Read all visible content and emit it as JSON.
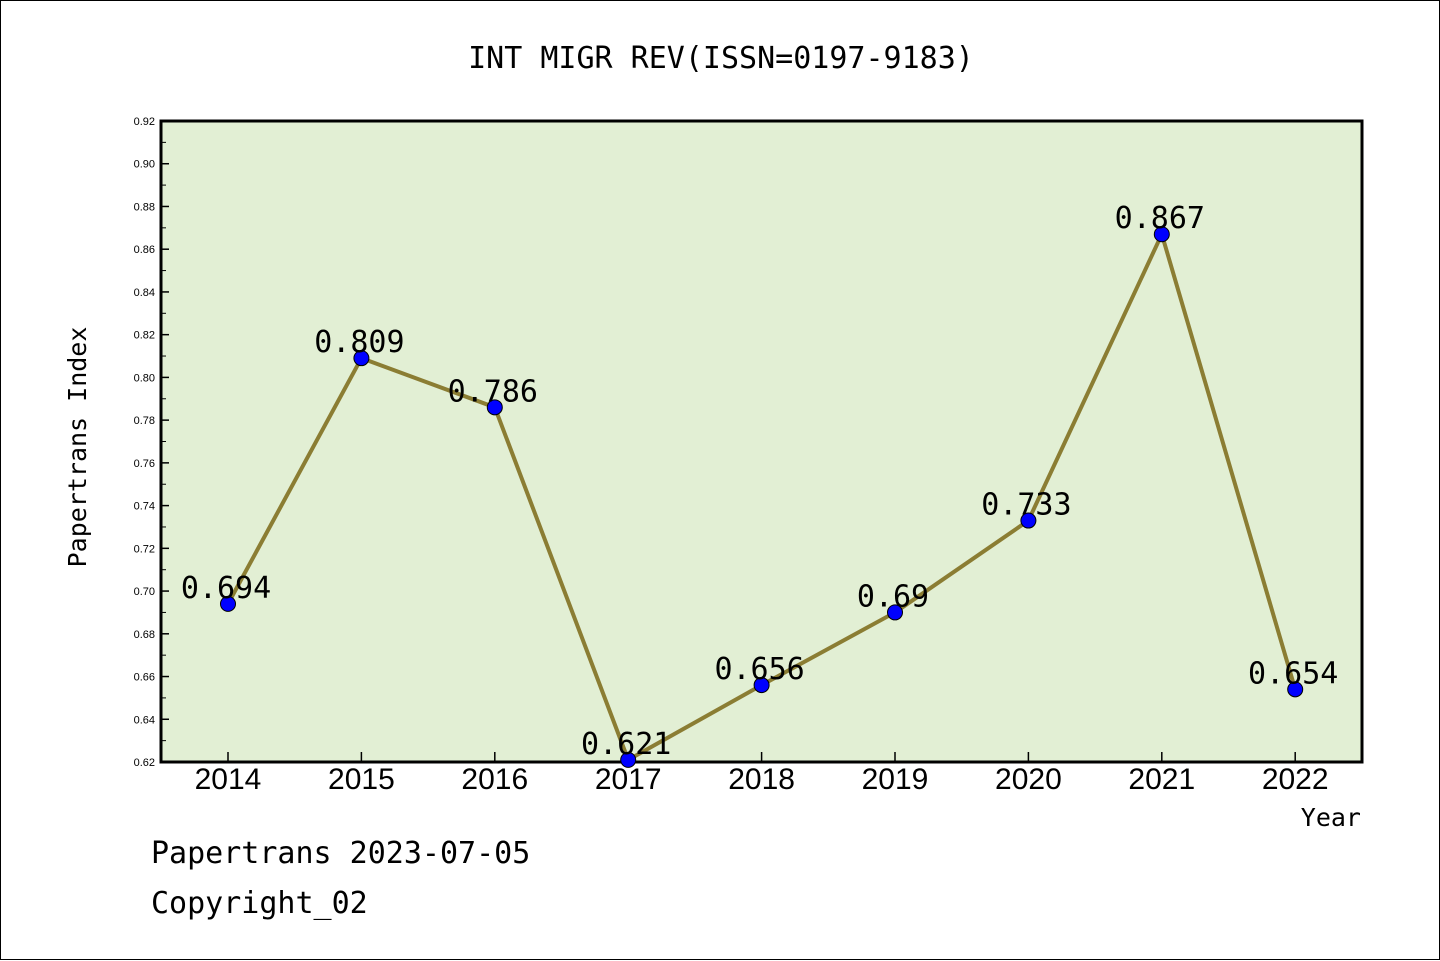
{
  "chart_data": {
    "type": "line",
    "title": "INT MIGR REV(ISSN=0197-9183)",
    "xlabel": "Year",
    "ylabel": "Papertrans Index",
    "categories": [
      "2014",
      "2015",
      "2016",
      "2017",
      "2018",
      "2019",
      "2020",
      "2021",
      "2022"
    ],
    "series": [
      {
        "values": [
          0.694,
          0.809,
          0.786,
          0.621,
          0.656,
          0.69,
          0.733,
          0.867,
          0.654
        ],
        "labels": [
          "0.694",
          "0.809",
          "0.786",
          "0.621",
          "0.656",
          "0.69",
          "0.733",
          "0.867",
          "0.654"
        ]
      }
    ],
    "ylim": [
      0.62,
      0.92
    ],
    "yticks": [
      "0.62",
      "0.64",
      "0.66",
      "0.68",
      "0.70",
      "0.72",
      "0.74",
      "0.76",
      "0.78",
      "0.80",
      "0.82",
      "0.84",
      "0.86",
      "0.88",
      "0.90",
      "0.92"
    ],
    "grid": false,
    "colors": {
      "plot_background": "#e2efd4",
      "line": "#8b7d33",
      "marker": "#0000ff"
    }
  },
  "footer": {
    "date_line": "Papertrans 2023-07-05",
    "copyright": "Copyright_02"
  }
}
